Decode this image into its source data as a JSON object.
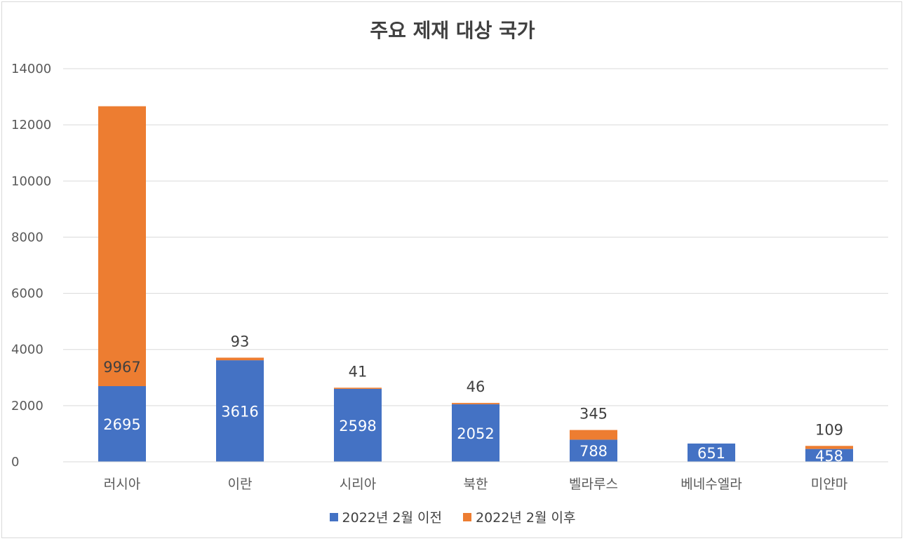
{
  "chart_data": {
    "type": "bar",
    "stacked": true,
    "title": "주요 제재 대상 국가",
    "categories": [
      "러시아",
      "이란",
      "시리아",
      "북한",
      "벨라루스",
      "베네수엘라",
      "미얀마"
    ],
    "series": [
      {
        "name": "2022년 2월 이전",
        "color": "#4472c4",
        "values": [
          2695,
          3616,
          2598,
          2052,
          788,
          651,
          458
        ]
      },
      {
        "name": "2022년 2월 이후",
        "color": "#ed7d31",
        "values": [
          9967,
          93,
          41,
          46,
          345,
          0,
          109
        ]
      }
    ],
    "ylim": [
      0,
      14000
    ],
    "yticks": [
      "0",
      "2000",
      "4000",
      "6000",
      "8000",
      "10000",
      "12000",
      "14000"
    ],
    "grid": true,
    "legend": "bottom"
  }
}
